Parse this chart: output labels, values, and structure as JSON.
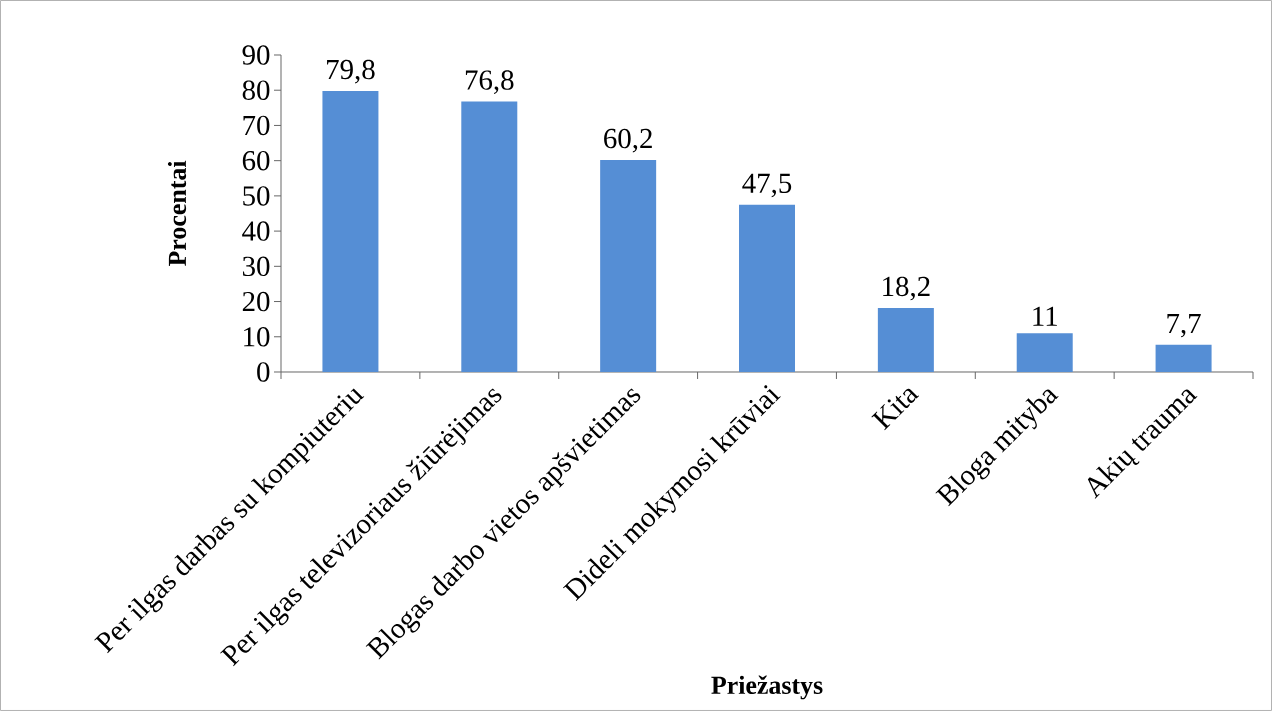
{
  "chart_data": {
    "type": "bar",
    "xlabel": "Priežastys",
    "ylabel": "Procentai",
    "categories": [
      "Per ilgas darbas su kompiuteriu",
      "Per ilgas televizoriaus žiūrėjimas",
      "Blogas darbo vietos apšvietimas",
      "Dideli mokymosi krūviai",
      "Kita",
      "Bloga mityba",
      "Akių trauma"
    ],
    "values": [
      79.8,
      76.8,
      60.2,
      47.5,
      18.2,
      11,
      7.7
    ],
    "value_labels": [
      "79,8",
      "76,8",
      "60,2",
      "47,5",
      "18,2",
      "11",
      "7,7"
    ],
    "color": "#558ed5",
    "ylim": [
      0,
      90
    ],
    "yticks": [
      0,
      10,
      20,
      30,
      40,
      50,
      60,
      70,
      80,
      90
    ],
    "grid": false
  }
}
